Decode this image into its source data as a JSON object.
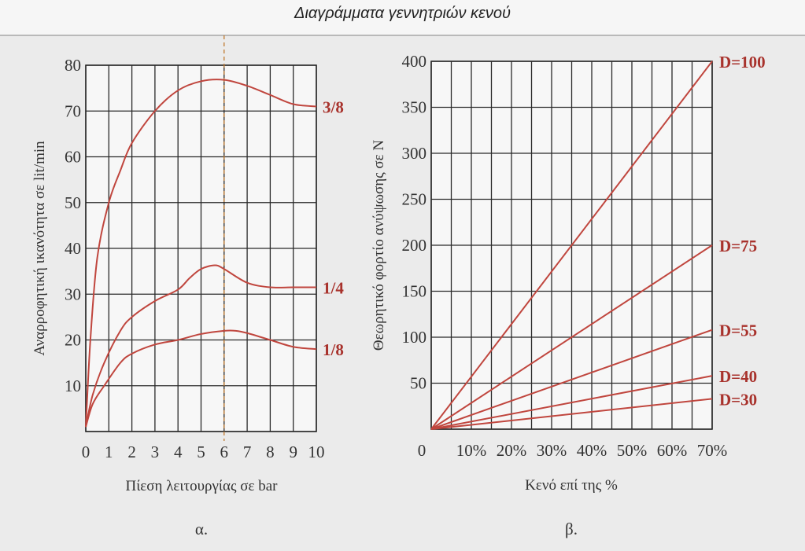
{
  "page": {
    "title": "Διαγράμματα γεννητριών κενού"
  },
  "colors": {
    "curve": "#c0463e",
    "label": "#a8322c",
    "grid": "#2a2a2a",
    "dashed": "#c07a30"
  },
  "chart_data": [
    {
      "type": "line",
      "caption": "α.",
      "xlabel": "Πίεση λειτουργίας σε bar",
      "ylabel": "Αναρροφητική ικανότητα σε lit/min",
      "xlim": [
        0,
        10
      ],
      "ylim": [
        0,
        80
      ],
      "xticks": [
        0,
        1,
        2,
        3,
        4,
        5,
        6,
        7,
        8,
        9,
        10
      ],
      "yticks": [
        10,
        20,
        30,
        40,
        50,
        60,
        70,
        80
      ],
      "grid": true,
      "vertical_marker": 6,
      "series": [
        {
          "name": "3/8",
          "points": [
            [
              0,
              1
            ],
            [
              0.2,
              20
            ],
            [
              0.5,
              38
            ],
            [
              1,
              50
            ],
            [
              1.5,
              57
            ],
            [
              2,
              63
            ],
            [
              3,
              70
            ],
            [
              4,
              74.5
            ],
            [
              5,
              76.5
            ],
            [
              6,
              76.8
            ],
            [
              7,
              75.5
            ],
            [
              8,
              73.5
            ],
            [
              9,
              71.5
            ],
            [
              10,
              71
            ]
          ]
        },
        {
          "name": "1/4",
          "points": [
            [
              0,
              1
            ],
            [
              0.3,
              8
            ],
            [
              0.8,
              15
            ],
            [
              1.5,
              22
            ],
            [
              2,
              25
            ],
            [
              3,
              28.5
            ],
            [
              4,
              31
            ],
            [
              4.5,
              33.5
            ],
            [
              5,
              35.5
            ],
            [
              5.6,
              36.3
            ],
            [
              6,
              35.5
            ],
            [
              7,
              32.5
            ],
            [
              8,
              31.5
            ],
            [
              9,
              31.5
            ],
            [
              10,
              31.5
            ]
          ]
        },
        {
          "name": "1/8",
          "points": [
            [
              0,
              1
            ],
            [
              0.3,
              6
            ],
            [
              0.8,
              10
            ],
            [
              1.5,
              15
            ],
            [
              2,
              17
            ],
            [
              3,
              19
            ],
            [
              4,
              20
            ],
            [
              5,
              21.3
            ],
            [
              6,
              22
            ],
            [
              6.5,
              22
            ],
            [
              7,
              21.5
            ],
            [
              8,
              20
            ],
            [
              9,
              18.5
            ],
            [
              10,
              18
            ]
          ]
        }
      ]
    },
    {
      "type": "line",
      "caption": "β.",
      "xlabel": "Κενό επί της %",
      "ylabel": "Θεωρητικό φορτίο ανύψωσης σε N",
      "xlim": [
        0,
        70
      ],
      "ylim": [
        0,
        400
      ],
      "xticks": [
        0,
        10,
        20,
        30,
        40,
        50,
        60,
        70
      ],
      "xtick_labels": [
        "0",
        "10%",
        "20%",
        "30%",
        "40%",
        "50%",
        "60%",
        "70%"
      ],
      "yticks": [
        50,
        100,
        150,
        200,
        250,
        300,
        350,
        400
      ],
      "grid": true,
      "series": [
        {
          "name": "D=100",
          "points": [
            [
              0,
              0
            ],
            [
              70,
              400
            ]
          ]
        },
        {
          "name": "D=75",
          "points": [
            [
              0,
              0
            ],
            [
              70,
              200
            ]
          ]
        },
        {
          "name": "D=55",
          "points": [
            [
              0,
              0
            ],
            [
              70,
              108
            ]
          ]
        },
        {
          "name": "D=40",
          "points": [
            [
              0,
              0
            ],
            [
              70,
              58
            ]
          ]
        },
        {
          "name": "D=30",
          "points": [
            [
              0,
              0
            ],
            [
              70,
              33
            ]
          ]
        }
      ]
    }
  ]
}
